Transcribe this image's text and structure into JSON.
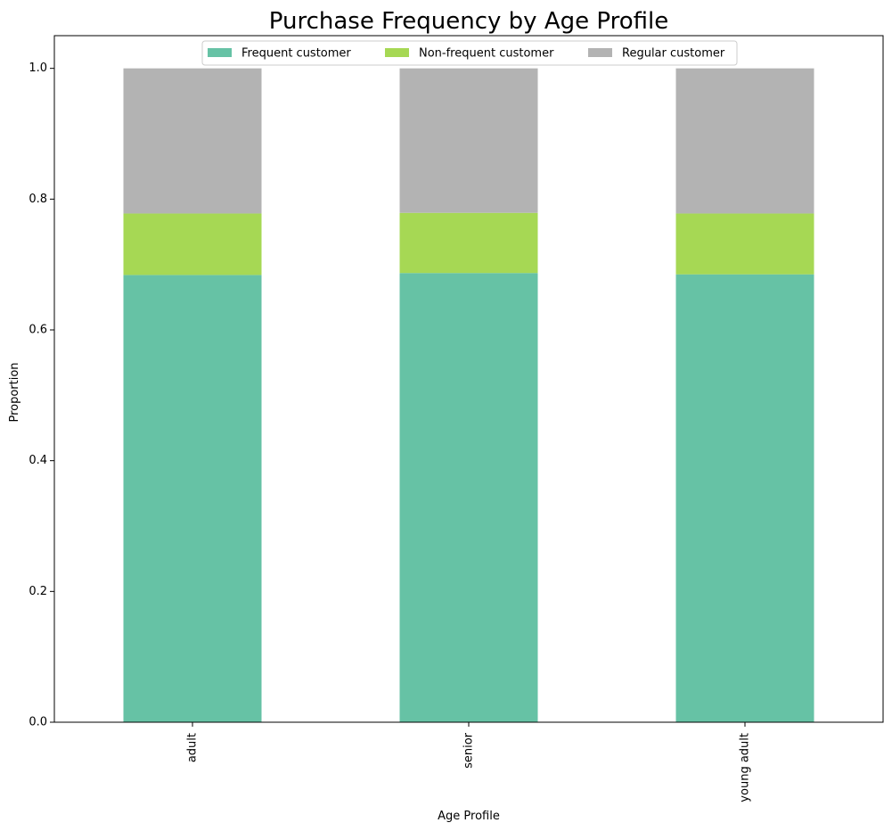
{
  "chart_data": {
    "type": "bar",
    "stacked": true,
    "title": "Purchase Frequency by Age Profile",
    "xlabel": "Age Profile",
    "ylabel": "Proportion",
    "ylim": [
      0,
      1.05
    ],
    "yticks": [
      0.0,
      0.2,
      0.4,
      0.6,
      0.8,
      1.0
    ],
    "ytick_labels": [
      "0.0",
      "0.2",
      "0.4",
      "0.6",
      "0.8",
      "1.0"
    ],
    "categories": [
      "adult",
      "senior",
      "young adult"
    ],
    "series": [
      {
        "name": "Frequent customer",
        "values": [
          0.684,
          0.687,
          0.685
        ],
        "color": "#66c2a5"
      },
      {
        "name": "Non-frequent customer",
        "values": [
          0.094,
          0.092,
          0.093
        ],
        "color": "#a6d854"
      },
      {
        "name": "Regular customer",
        "values": [
          0.222,
          0.221,
          0.222
        ],
        "color": "#b3b3b3"
      }
    ],
    "grid": false,
    "legend_position": "top-center"
  }
}
